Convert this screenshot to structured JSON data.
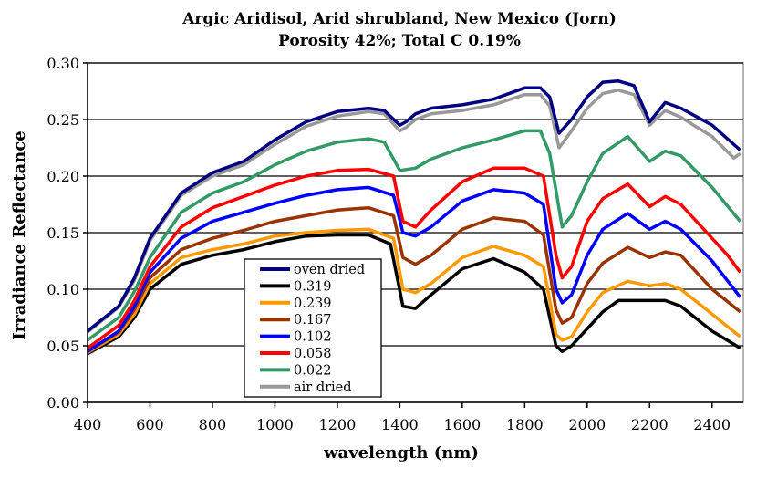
{
  "chart_data": {
    "type": "line",
    "title": "Argic Aridisol, Arid shrubland, New Mexico (Jorn)",
    "subtitle": "Porosity 42%;  Total C 0.19%",
    "xlabel": "wavelength (nm)",
    "ylabel": "Irradiance Reflectance",
    "xlim": [
      400,
      2500
    ],
    "ylim": [
      0,
      0.3
    ],
    "xticks": [
      400,
      600,
      800,
      1000,
      1200,
      1400,
      1600,
      1800,
      2000,
      2200,
      2400
    ],
    "xtick_labels": [
      "400",
      "600",
      "800",
      "1000",
      "1200",
      "1400",
      "1600",
      "1800",
      "2000",
      "2200",
      "2400"
    ],
    "yticks": [
      0,
      0.05,
      0.1,
      0.15,
      0.2,
      0.25,
      0.3
    ],
    "ytick_labels": [
      "0.00",
      "0.05",
      "0.10",
      "0.15",
      "0.20",
      "0.25",
      "0.30"
    ],
    "grid": "horizontal",
    "legend_position": "bottom-center",
    "series": [
      {
        "name": "oven dried",
        "color": "#000080",
        "points": [
          [
            400,
            0.063
          ],
          [
            500,
            0.085
          ],
          [
            550,
            0.11
          ],
          [
            600,
            0.145
          ],
          [
            700,
            0.185
          ],
          [
            800,
            0.203
          ],
          [
            900,
            0.213
          ],
          [
            1000,
            0.232
          ],
          [
            1100,
            0.248
          ],
          [
            1200,
            0.257
          ],
          [
            1300,
            0.26
          ],
          [
            1350,
            0.258
          ],
          [
            1400,
            0.245
          ],
          [
            1420,
            0.248
          ],
          [
            1450,
            0.255
          ],
          [
            1500,
            0.26
          ],
          [
            1600,
            0.263
          ],
          [
            1700,
            0.268
          ],
          [
            1800,
            0.278
          ],
          [
            1850,
            0.278
          ],
          [
            1880,
            0.27
          ],
          [
            1910,
            0.238
          ],
          [
            1950,
            0.25
          ],
          [
            2000,
            0.27
          ],
          [
            2050,
            0.283
          ],
          [
            2100,
            0.284
          ],
          [
            2150,
            0.28
          ],
          [
            2200,
            0.248
          ],
          [
            2250,
            0.265
          ],
          [
            2300,
            0.26
          ],
          [
            2400,
            0.245
          ],
          [
            2490,
            0.223
          ]
        ]
      },
      {
        "name": "0.319",
        "color": "#000000",
        "points": [
          [
            400,
            0.043
          ],
          [
            500,
            0.058
          ],
          [
            550,
            0.075
          ],
          [
            600,
            0.1
          ],
          [
            700,
            0.122
          ],
          [
            800,
            0.13
          ],
          [
            900,
            0.135
          ],
          [
            1000,
            0.142
          ],
          [
            1100,
            0.147
          ],
          [
            1200,
            0.148
          ],
          [
            1300,
            0.148
          ],
          [
            1370,
            0.14
          ],
          [
            1410,
            0.085
          ],
          [
            1450,
            0.083
          ],
          [
            1500,
            0.095
          ],
          [
            1600,
            0.118
          ],
          [
            1700,
            0.127
          ],
          [
            1800,
            0.115
          ],
          [
            1860,
            0.1
          ],
          [
            1900,
            0.05
          ],
          [
            1920,
            0.045
          ],
          [
            1950,
            0.05
          ],
          [
            2000,
            0.065
          ],
          [
            2050,
            0.08
          ],
          [
            2100,
            0.09
          ],
          [
            2200,
            0.09
          ],
          [
            2250,
            0.09
          ],
          [
            2300,
            0.085
          ],
          [
            2400,
            0.063
          ],
          [
            2490,
            0.048
          ]
        ]
      },
      {
        "name": "0.239",
        "color": "#FF9900",
        "points": [
          [
            400,
            0.044
          ],
          [
            500,
            0.06
          ],
          [
            550,
            0.078
          ],
          [
            600,
            0.105
          ],
          [
            700,
            0.128
          ],
          [
            800,
            0.135
          ],
          [
            900,
            0.14
          ],
          [
            1000,
            0.147
          ],
          [
            1100,
            0.15
          ],
          [
            1200,
            0.152
          ],
          [
            1300,
            0.153
          ],
          [
            1380,
            0.145
          ],
          [
            1410,
            0.1
          ],
          [
            1450,
            0.097
          ],
          [
            1500,
            0.105
          ],
          [
            1600,
            0.128
          ],
          [
            1700,
            0.138
          ],
          [
            1800,
            0.13
          ],
          [
            1860,
            0.12
          ],
          [
            1900,
            0.06
          ],
          [
            1920,
            0.055
          ],
          [
            1950,
            0.058
          ],
          [
            2000,
            0.08
          ],
          [
            2050,
            0.097
          ],
          [
            2130,
            0.107
          ],
          [
            2200,
            0.103
          ],
          [
            2250,
            0.105
          ],
          [
            2300,
            0.1
          ],
          [
            2400,
            0.078
          ],
          [
            2490,
            0.058
          ]
        ]
      },
      {
        "name": "0.167",
        "color": "#993300",
        "points": [
          [
            400,
            0.045
          ],
          [
            500,
            0.062
          ],
          [
            550,
            0.082
          ],
          [
            600,
            0.11
          ],
          [
            700,
            0.135
          ],
          [
            800,
            0.145
          ],
          [
            900,
            0.152
          ],
          [
            1000,
            0.16
          ],
          [
            1100,
            0.165
          ],
          [
            1200,
            0.17
          ],
          [
            1300,
            0.172
          ],
          [
            1380,
            0.165
          ],
          [
            1410,
            0.128
          ],
          [
            1450,
            0.122
          ],
          [
            1500,
            0.13
          ],
          [
            1600,
            0.153
          ],
          [
            1700,
            0.163
          ],
          [
            1800,
            0.16
          ],
          [
            1860,
            0.148
          ],
          [
            1900,
            0.082
          ],
          [
            1920,
            0.07
          ],
          [
            1950,
            0.075
          ],
          [
            2000,
            0.105
          ],
          [
            2050,
            0.123
          ],
          [
            2130,
            0.137
          ],
          [
            2200,
            0.128
          ],
          [
            2250,
            0.133
          ],
          [
            2300,
            0.13
          ],
          [
            2400,
            0.1
          ],
          [
            2490,
            0.08
          ]
        ]
      },
      {
        "name": "0.102",
        "color": "#0000FF",
        "points": [
          [
            400,
            0.045
          ],
          [
            500,
            0.063
          ],
          [
            550,
            0.085
          ],
          [
            600,
            0.115
          ],
          [
            700,
            0.145
          ],
          [
            800,
            0.16
          ],
          [
            900,
            0.168
          ],
          [
            1000,
            0.176
          ],
          [
            1100,
            0.183
          ],
          [
            1200,
            0.188
          ],
          [
            1300,
            0.19
          ],
          [
            1380,
            0.183
          ],
          [
            1410,
            0.15
          ],
          [
            1450,
            0.147
          ],
          [
            1500,
            0.155
          ],
          [
            1600,
            0.178
          ],
          [
            1700,
            0.188
          ],
          [
            1800,
            0.185
          ],
          [
            1860,
            0.175
          ],
          [
            1900,
            0.1
          ],
          [
            1920,
            0.088
          ],
          [
            1950,
            0.095
          ],
          [
            2000,
            0.13
          ],
          [
            2050,
            0.153
          ],
          [
            2130,
            0.167
          ],
          [
            2200,
            0.153
          ],
          [
            2250,
            0.16
          ],
          [
            2300,
            0.153
          ],
          [
            2400,
            0.125
          ],
          [
            2490,
            0.093
          ]
        ]
      },
      {
        "name": "0.058",
        "color": "#FF0000",
        "points": [
          [
            400,
            0.048
          ],
          [
            500,
            0.068
          ],
          [
            550,
            0.09
          ],
          [
            600,
            0.12
          ],
          [
            700,
            0.155
          ],
          [
            800,
            0.172
          ],
          [
            900,
            0.182
          ],
          [
            1000,
            0.192
          ],
          [
            1100,
            0.2
          ],
          [
            1200,
            0.205
          ],
          [
            1300,
            0.206
          ],
          [
            1380,
            0.2
          ],
          [
            1410,
            0.16
          ],
          [
            1450,
            0.155
          ],
          [
            1500,
            0.17
          ],
          [
            1600,
            0.195
          ],
          [
            1700,
            0.207
          ],
          [
            1800,
            0.207
          ],
          [
            1860,
            0.2
          ],
          [
            1900,
            0.13
          ],
          [
            1920,
            0.11
          ],
          [
            1950,
            0.12
          ],
          [
            2000,
            0.16
          ],
          [
            2050,
            0.18
          ],
          [
            2130,
            0.193
          ],
          [
            2200,
            0.173
          ],
          [
            2250,
            0.182
          ],
          [
            2300,
            0.175
          ],
          [
            2400,
            0.145
          ],
          [
            2450,
            0.13
          ],
          [
            2490,
            0.115
          ]
        ]
      },
      {
        "name": "0.022",
        "color": "#339966",
        "points": [
          [
            400,
            0.055
          ],
          [
            500,
            0.075
          ],
          [
            550,
            0.098
          ],
          [
            600,
            0.128
          ],
          [
            700,
            0.168
          ],
          [
            800,
            0.185
          ],
          [
            900,
            0.195
          ],
          [
            1000,
            0.21
          ],
          [
            1100,
            0.222
          ],
          [
            1200,
            0.23
          ],
          [
            1300,
            0.233
          ],
          [
            1350,
            0.23
          ],
          [
            1400,
            0.205
          ],
          [
            1450,
            0.207
          ],
          [
            1500,
            0.215
          ],
          [
            1600,
            0.225
          ],
          [
            1700,
            0.232
          ],
          [
            1800,
            0.24
          ],
          [
            1850,
            0.24
          ],
          [
            1880,
            0.22
          ],
          [
            1920,
            0.155
          ],
          [
            1950,
            0.165
          ],
          [
            2000,
            0.195
          ],
          [
            2050,
            0.22
          ],
          [
            2130,
            0.235
          ],
          [
            2200,
            0.213
          ],
          [
            2250,
            0.222
          ],
          [
            2300,
            0.218
          ],
          [
            2400,
            0.19
          ],
          [
            2490,
            0.16
          ]
        ]
      },
      {
        "name": "air dried",
        "color": "#999999",
        "points": [
          [
            400,
            0.062
          ],
          [
            500,
            0.084
          ],
          [
            550,
            0.108
          ],
          [
            600,
            0.143
          ],
          [
            700,
            0.183
          ],
          [
            800,
            0.2
          ],
          [
            900,
            0.21
          ],
          [
            1000,
            0.228
          ],
          [
            1100,
            0.244
          ],
          [
            1200,
            0.253
          ],
          [
            1300,
            0.257
          ],
          [
            1350,
            0.255
          ],
          [
            1400,
            0.24
          ],
          [
            1420,
            0.243
          ],
          [
            1450,
            0.25
          ],
          [
            1500,
            0.255
          ],
          [
            1600,
            0.258
          ],
          [
            1700,
            0.263
          ],
          [
            1800,
            0.272
          ],
          [
            1850,
            0.272
          ],
          [
            1880,
            0.262
          ],
          [
            1910,
            0.225
          ],
          [
            1950,
            0.24
          ],
          [
            2000,
            0.26
          ],
          [
            2050,
            0.273
          ],
          [
            2100,
            0.276
          ],
          [
            2150,
            0.272
          ],
          [
            2200,
            0.245
          ],
          [
            2250,
            0.258
          ],
          [
            2300,
            0.252
          ],
          [
            2400,
            0.235
          ],
          [
            2470,
            0.216
          ],
          [
            2490,
            0.22
          ]
        ]
      }
    ]
  }
}
